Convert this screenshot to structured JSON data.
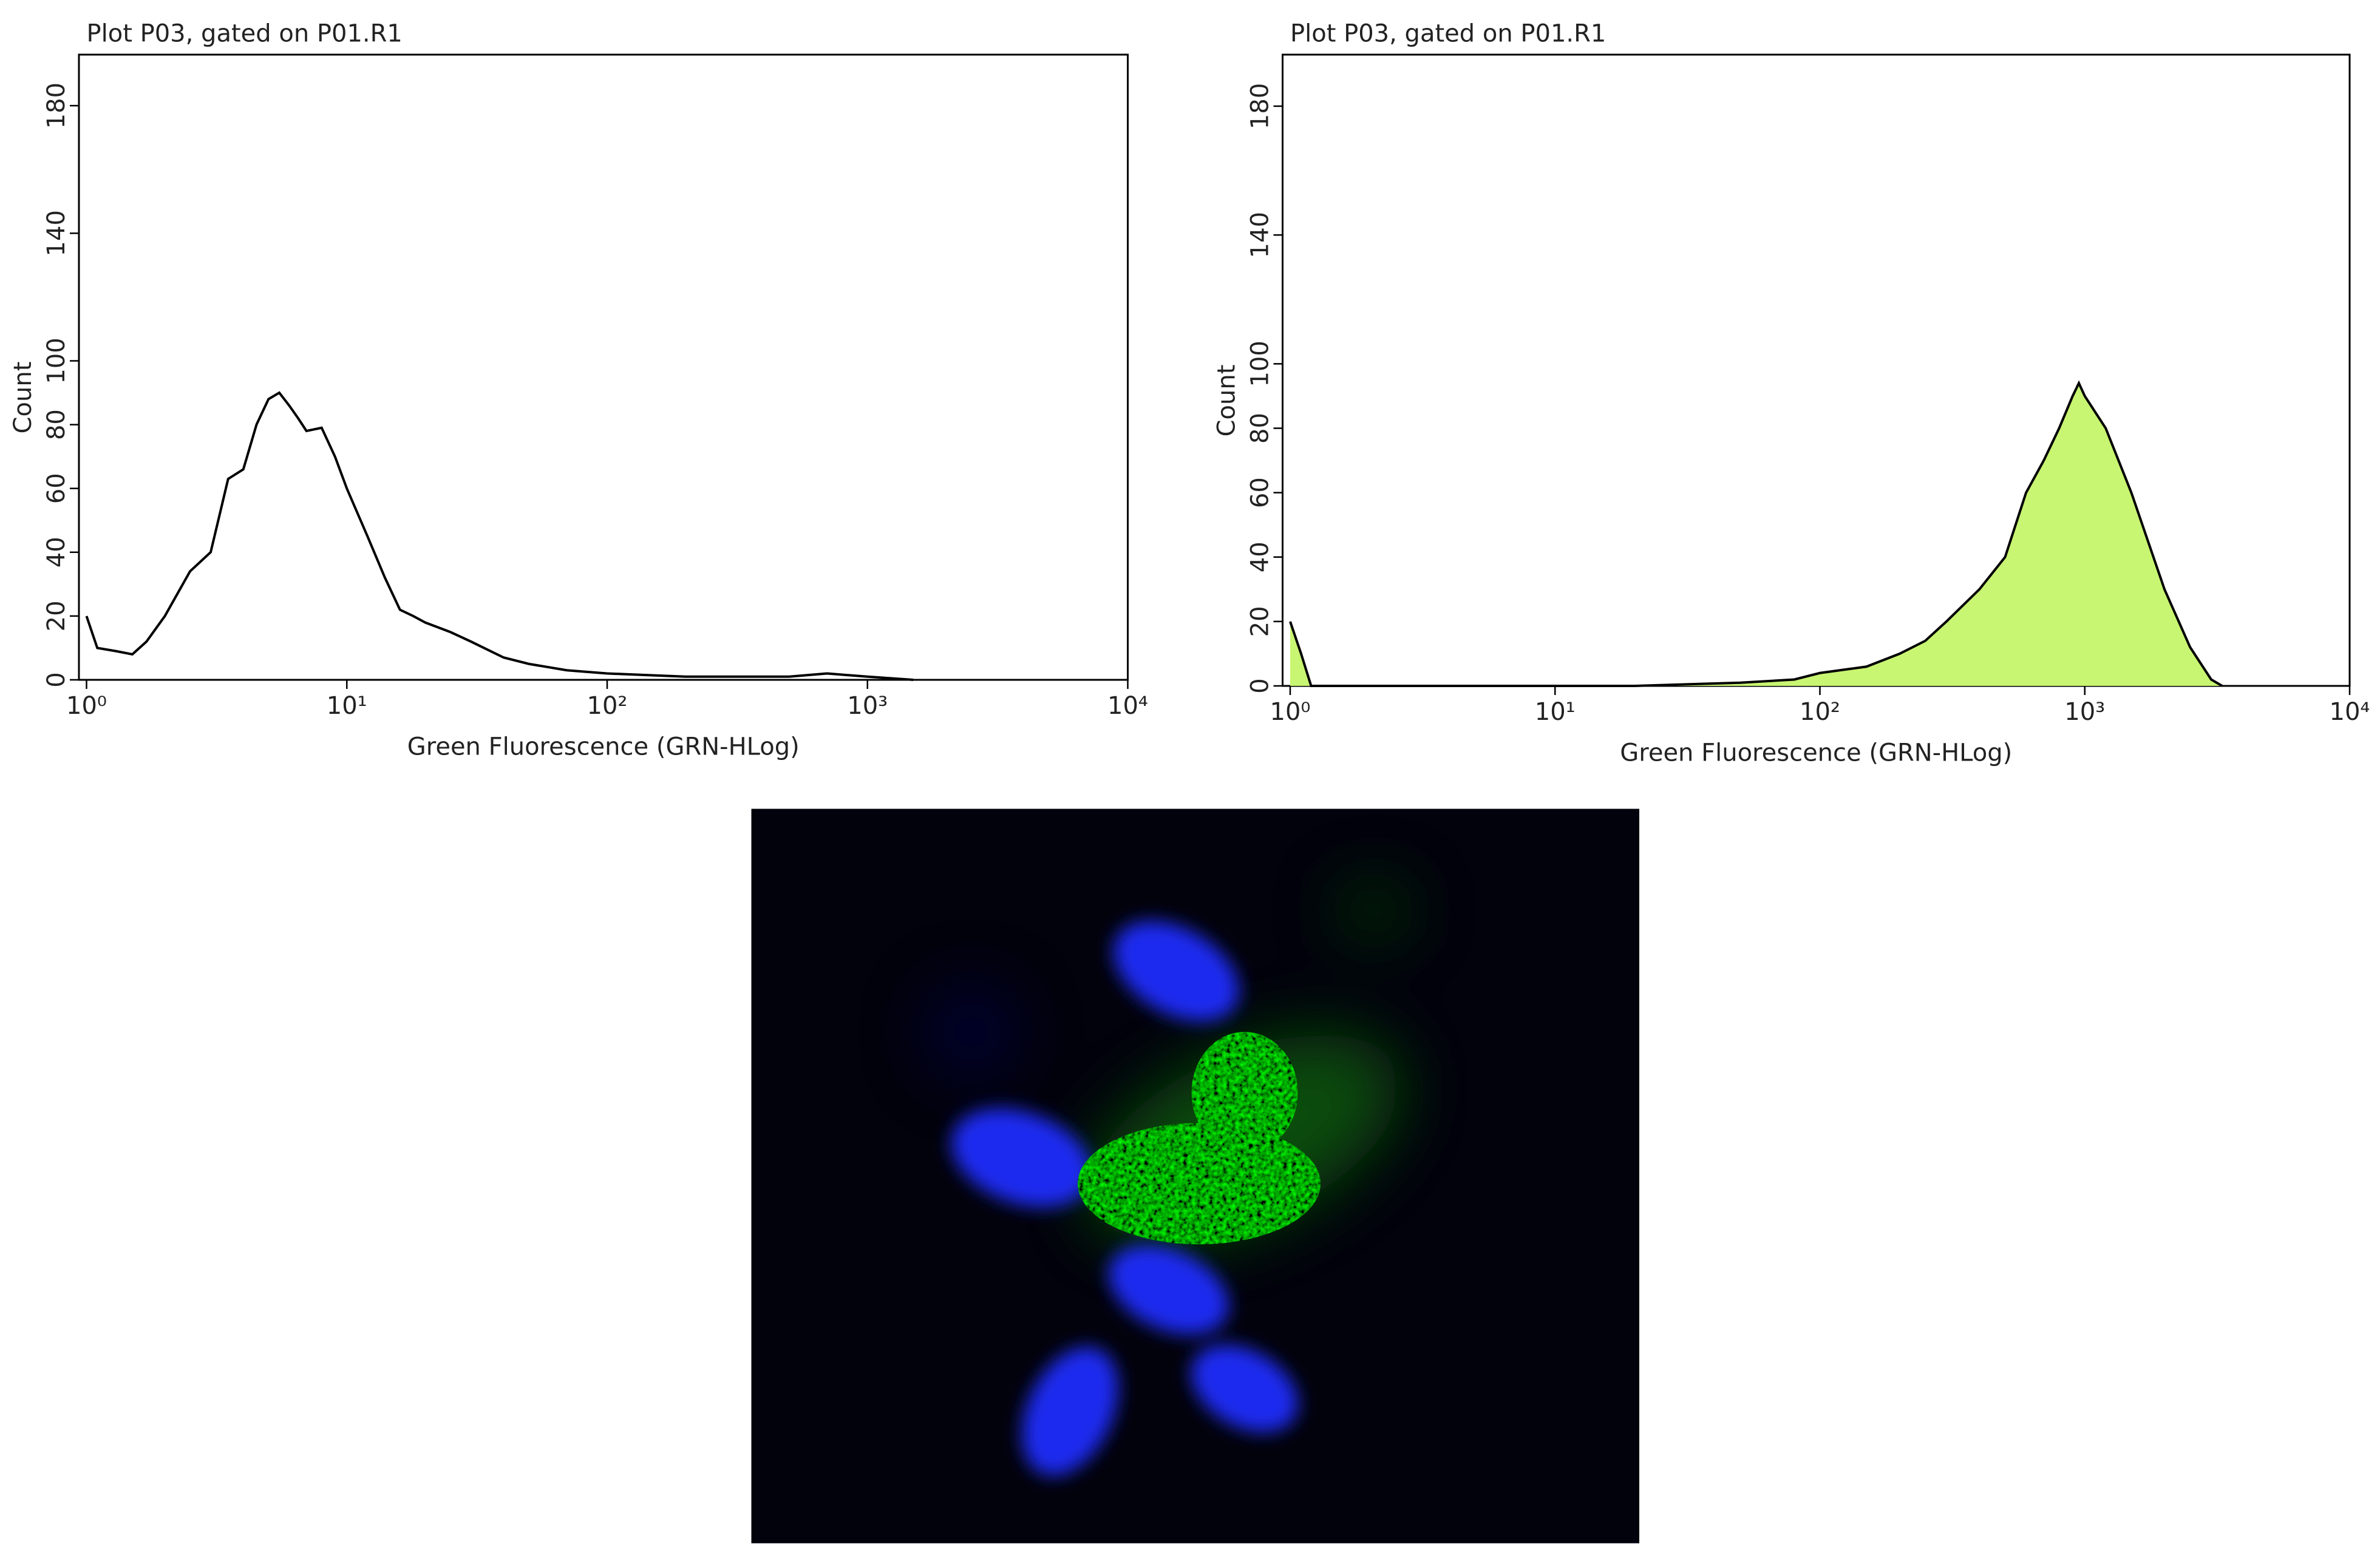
{
  "chart_data": [
    {
      "type": "line",
      "title": "Plot P03, gated on P01.R1",
      "xlabel": "Green Fluorescence (GRN-HLog)",
      "ylabel": "Count",
      "xscale": "log",
      "xlim": [
        1,
        10000
      ],
      "xticks": [
        {
          "value": 1,
          "label": "10⁰"
        },
        {
          "value": 10,
          "label": "10¹"
        },
        {
          "value": 100,
          "label": "10²"
        },
        {
          "value": 1000,
          "label": "10³"
        },
        {
          "value": 10000,
          "label": "10⁴"
        }
      ],
      "ylim": [
        0,
        196
      ],
      "yticks": [
        0,
        20,
        40,
        60,
        80,
        100,
        140,
        180
      ],
      "color": "#000000",
      "x": [
        1,
        1.1,
        1.3,
        1.5,
        1.7,
        2,
        2.5,
        3,
        3.5,
        4,
        4.5,
        5,
        5.5,
        6,
        6.5,
        7,
        8,
        9,
        10,
        12,
        14,
        16,
        18,
        20,
        25,
        30,
        40,
        50,
        70,
        100,
        200,
        500,
        700,
        1000,
        1500
      ],
      "values": [
        20,
        10,
        9,
        8,
        12,
        20,
        34,
        40,
        63,
        66,
        80,
        88,
        90,
        86,
        82,
        78,
        79,
        70,
        60,
        45,
        32,
        22,
        20,
        18,
        15,
        12,
        7,
        5,
        3,
        2,
        1,
        1,
        2,
        1,
        0
      ]
    },
    {
      "type": "area",
      "title": "Plot P03, gated on P01.R1",
      "xlabel": "Green Fluorescence (GRN-HLog)",
      "ylabel": "Count",
      "xscale": "log",
      "xlim": [
        1,
        10000
      ],
      "xticks": [
        {
          "value": 1,
          "label": "10⁰"
        },
        {
          "value": 10,
          "label": "10¹"
        },
        {
          "value": 100,
          "label": "10²"
        },
        {
          "value": 1000,
          "label": "10³"
        },
        {
          "value": 10000,
          "label": "10⁴"
        }
      ],
      "ylim": [
        0,
        196
      ],
      "yticks": [
        0,
        20,
        40,
        60,
        80,
        100,
        140,
        180
      ],
      "color": "#000000",
      "fill": "#c8f572",
      "x": [
        1,
        1.1,
        1.2,
        20,
        50,
        80,
        100,
        150,
        200,
        250,
        300,
        400,
        500,
        600,
        700,
        800,
        900,
        950,
        1000,
        1200,
        1500,
        2000,
        2500,
        3000,
        3300
      ],
      "values": [
        20,
        10,
        0,
        0,
        1,
        2,
        4,
        6,
        10,
        14,
        20,
        30,
        40,
        60,
        70,
        80,
        90,
        94,
        90,
        80,
        60,
        30,
        12,
        2,
        0
      ]
    }
  ]
}
